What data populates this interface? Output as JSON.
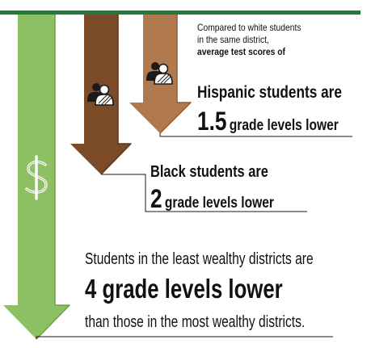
{
  "intro": {
    "line1": "Compared to white students",
    "line2": "in the same district,",
    "line3": "average test scores of"
  },
  "hispanic": {
    "label": "Hispanic students are",
    "value": "1.5",
    "unit": "grade levels lower"
  },
  "black": {
    "label": "Black students are",
    "value": "2",
    "unit": "grade levels lower"
  },
  "wealth": {
    "label": "Students in the least wealthy districts are",
    "headline": "4 grade levels lower",
    "tail": "than those in the most wealthy districts."
  },
  "icons": {
    "hispanic_arrow": "people-icon",
    "black_arrow": "people-icon",
    "wealth_arrow": "dollar-sign-icon"
  },
  "colors": {
    "top_bar": "#1f7a3c",
    "wealth_arrow": "#8cc063",
    "wealth_arrow_edge": "#6e9f49",
    "black_arrow": "#7b4a26",
    "black_arrow_edge": "#5d3518",
    "hispanic_arrow": "#b07a4e",
    "hispanic_arrow_edge": "#8f5d35",
    "leader_line": "#1a1a1a"
  }
}
